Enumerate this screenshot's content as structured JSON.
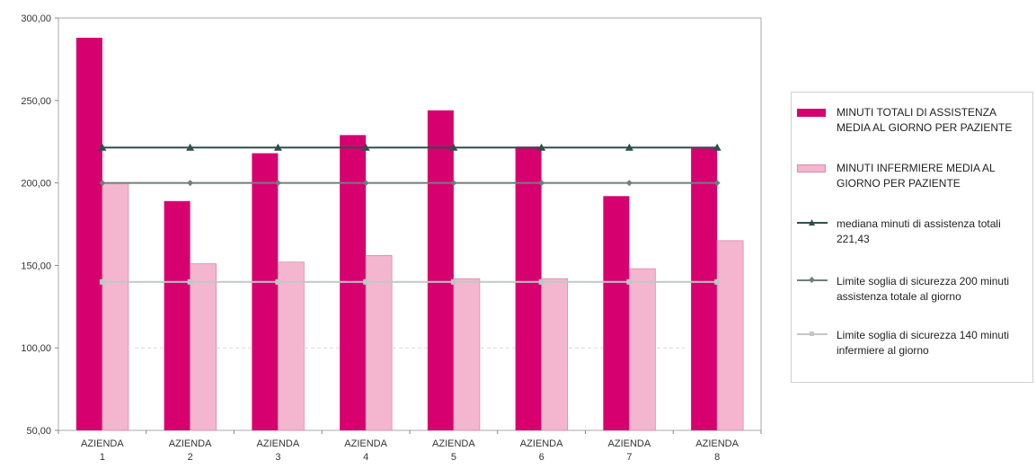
{
  "chart_data": {
    "type": "bar",
    "categories": [
      [
        "AZIENDA",
        "1"
      ],
      [
        "AZIENDA",
        "2"
      ],
      [
        "AZIENDA",
        "3"
      ],
      [
        "AZIENDA",
        "4"
      ],
      [
        "AZIENDA",
        "5"
      ],
      [
        "AZIENDA",
        "6"
      ],
      [
        "AZIENDA",
        "7"
      ],
      [
        "AZIENDA",
        "8"
      ]
    ],
    "series": [
      {
        "name": "MINUTI TOTALI DI ASSISTENZA MEDIA AL GIORNO PER PAZIENTE",
        "kind": "bar",
        "color": "#d6006f",
        "values": [
          288,
          189,
          218,
          229,
          244,
          222,
          192,
          221
        ]
      },
      {
        "name": "MINUTI INFERMIERE MEDIA AL GIORNO PER PAZIENTE",
        "kind": "bar",
        "color": "#f4b6cf",
        "values": [
          200,
          151,
          152,
          156,
          142,
          142,
          148,
          165
        ]
      }
    ],
    "lines": [
      {
        "name": "mediana minuti di assistenza totali 221,43",
        "value": 221.43,
        "color": "#2f4f4f",
        "marker": "triangle"
      },
      {
        "name": "Limite soglia di sicurezza 200 minuti assistenza totale al giorno",
        "value": 200,
        "color": "#6f7f7a",
        "marker": "diamond"
      },
      {
        "name": "Limite soglia di sicurezza 140 minuti infermiere al giorno",
        "value": 140,
        "color": "#c2c7c6",
        "marker": "square"
      }
    ],
    "yticks": [
      "50,00",
      "100,00",
      "150,00",
      "200,00",
      "250,00",
      "300,00"
    ],
    "ylim": [
      50,
      300
    ],
    "grid": false,
    "legend_position": "right"
  }
}
